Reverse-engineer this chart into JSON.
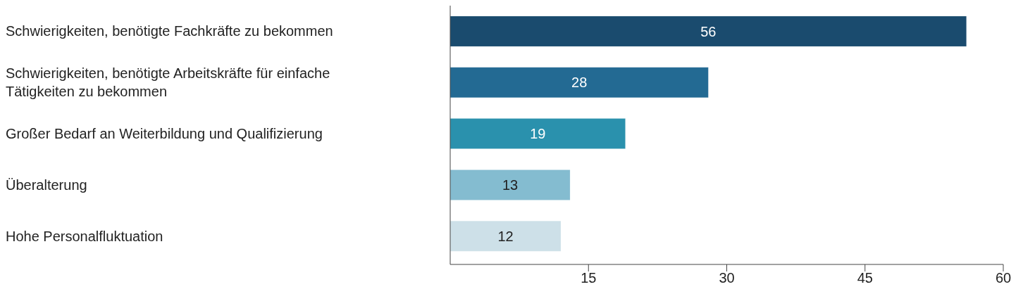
{
  "chart_data": {
    "type": "bar",
    "orientation": "horizontal",
    "categories": [
      "Schwierigkeiten, benötigte Fachkräfte zu bekommen",
      "Schwierigkeiten, benötigte Arbeitskräfte für einfache Tätigkeiten zu bekommen",
      "Großer Bedarf an Weiterbildung und Qualifizierung",
      "Überalterung",
      "Hohe Personalfluktuation"
    ],
    "values": [
      56,
      28,
      19,
      13,
      12
    ],
    "colors": [
      "#1a4b6e",
      "#236a93",
      "#2a91ad",
      "#84bcd0",
      "#cde0e8"
    ],
    "xlim": [
      0,
      60
    ],
    "xticks": [
      15,
      30,
      45,
      60
    ],
    "data_labels": true
  }
}
